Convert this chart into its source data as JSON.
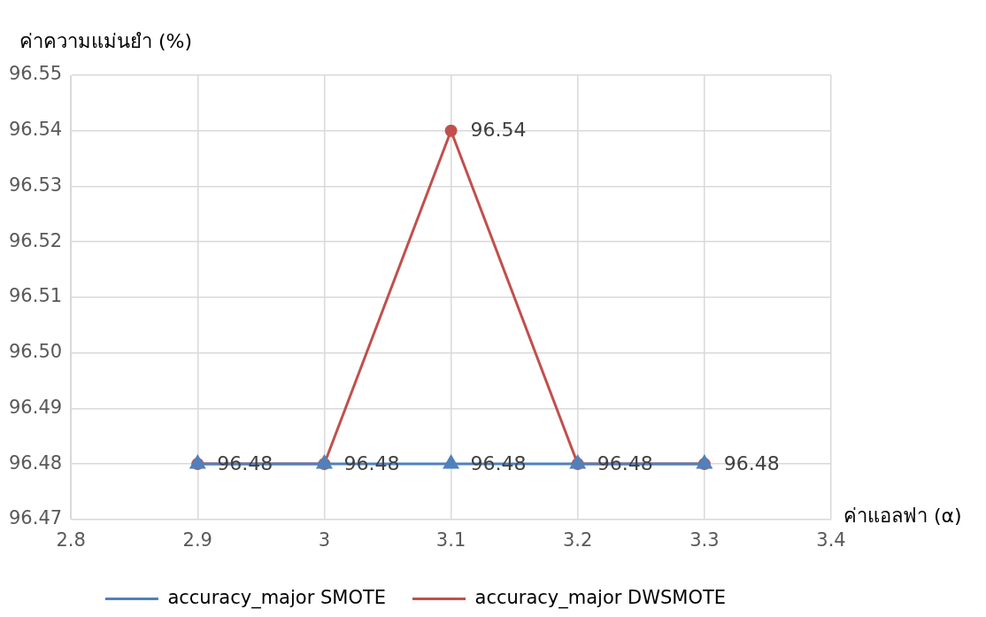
{
  "chart_data": {
    "type": "line",
    "xlabel": "ค่าแอลฟา (α)",
    "ylabel": "ค่าความแม่นยำ (%)",
    "x": [
      2.9,
      3,
      3.1,
      3.2,
      3.3
    ],
    "series": [
      {
        "name": "accuracy_major SMOTE",
        "color": "#4f81bd",
        "marker": "triangle",
        "values": [
          96.48,
          96.48,
          96.48,
          96.48,
          96.48
        ],
        "value_labels": [
          null,
          null,
          "96.48",
          null,
          null
        ]
      },
      {
        "name": "accuracy_major DWSMOTE",
        "color": "#c0504d",
        "marker": "circle",
        "values": [
          96.48,
          96.48,
          96.54,
          96.48,
          96.48
        ],
        "value_labels": [
          "96.48",
          "96.48",
          "96.54",
          "96.48",
          "96.48"
        ]
      }
    ],
    "xlim": [
      2.8,
      3.4
    ],
    "xticks": [
      2.8,
      2.9,
      3,
      3.1,
      3.2,
      3.3,
      3.4
    ],
    "ylim": [
      96.47,
      96.55
    ],
    "yticks": [
      {
        "value": 96.47,
        "label": "96.47"
      },
      {
        "value": 96.48,
        "label": "96.48"
      },
      {
        "value": 96.49,
        "label": "96.49"
      },
      {
        "value": 96.5,
        "label": "96.50"
      },
      {
        "value": 96.51,
        "label": "96.51"
      },
      {
        "value": 96.52,
        "label": "96.52"
      },
      {
        "value": 96.53,
        "label": "96.53"
      },
      {
        "value": 96.54,
        "label": "96.54"
      },
      {
        "value": 96.55,
        "label": "96.55"
      }
    ],
    "grid": true,
    "legend": "bottom",
    "line_style": "solid"
  }
}
